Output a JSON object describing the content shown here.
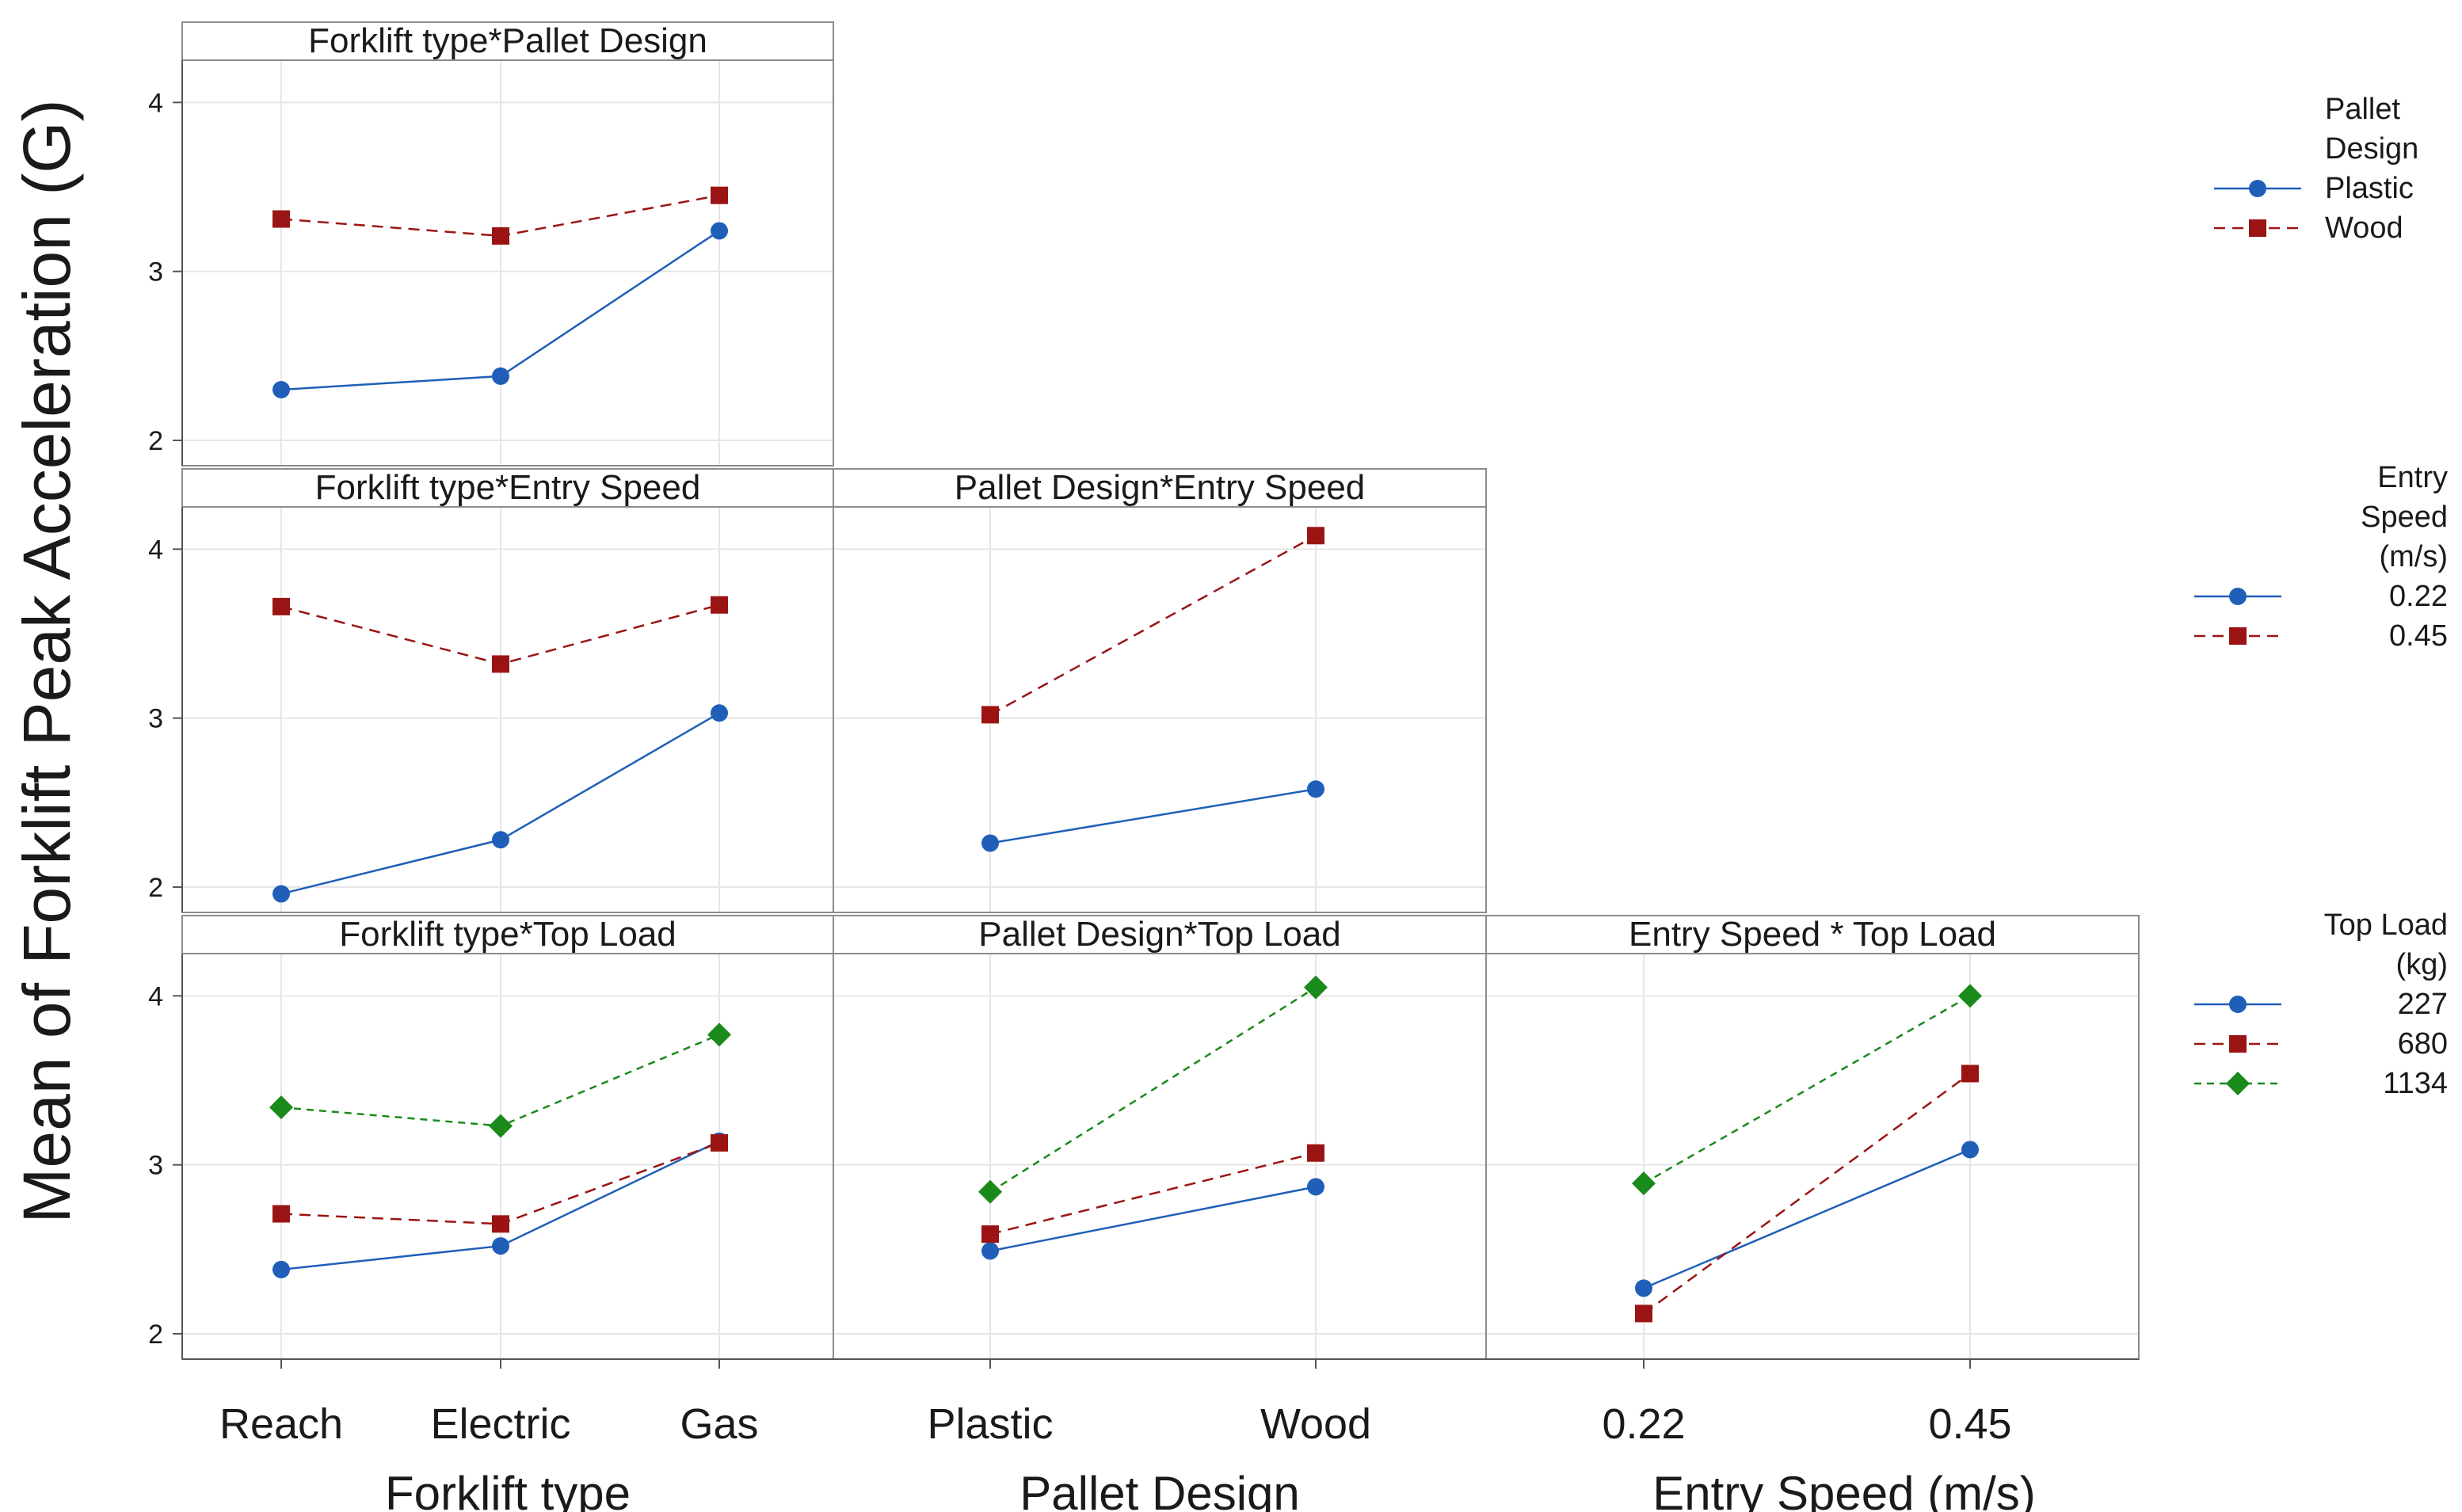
{
  "chart_data": {
    "type": "line",
    "title": "",
    "ylabel": "Mean of Forklift Peak Acceleration (G)",
    "ylim": [
      1.85,
      4.25
    ],
    "yticks": [
      2,
      3,
      4
    ],
    "factors": [
      {
        "key": "forklift",
        "label": "Forklift type",
        "levels": [
          "Reach",
          "Electric",
          "Gas"
        ]
      },
      {
        "key": "pallet",
        "label": "Pallet Design",
        "levels": [
          "Plastic",
          "Wood"
        ]
      },
      {
        "key": "speed",
        "label": "Entry Speed (m/s)",
        "levels": [
          "0.22",
          "0.45"
        ]
      }
    ],
    "legends": [
      {
        "title": [
          "Pallet",
          "Design"
        ],
        "align": "left",
        "entries": [
          "Plastic",
          "Wood"
        ]
      },
      {
        "title": [
          "Entry",
          "Speed",
          "(m/s)"
        ],
        "align": "right",
        "entries": [
          "0.22",
          "0.45"
        ]
      },
      {
        "title": [
          "Top Load",
          "(kg)"
        ],
        "align": "right",
        "entries": [
          "227",
          "680",
          "1134"
        ]
      }
    ],
    "series_styles": [
      {
        "color": "#1f5fb8",
        "marker": "circle",
        "dash": ""
      },
      {
        "color": "#9b1414",
        "marker": "square",
        "dash": "14,9"
      },
      {
        "color": "#1a8a1a",
        "marker": "diamond",
        "dash": "9,7"
      }
    ],
    "panels": [
      {
        "title": "Forklift type*Pallet Design",
        "row": 0,
        "col": 0,
        "series": [
          {
            "name": "Plastic",
            "values": [
              2.3,
              2.38,
              3.24
            ]
          },
          {
            "name": "Wood",
            "values": [
              3.31,
              3.21,
              3.45
            ]
          }
        ]
      },
      {
        "title": "Forklift type*Entry Speed",
        "row": 1,
        "col": 0,
        "series": [
          {
            "name": "0.22",
            "values": [
              1.96,
              2.28,
              3.03
            ]
          },
          {
            "name": "0.45",
            "values": [
              3.66,
              3.32,
              3.67
            ]
          }
        ]
      },
      {
        "title": "Pallet Design*Entry Speed",
        "row": 1,
        "col": 1,
        "series": [
          {
            "name": "0.22",
            "values": [
              2.26,
              2.58
            ]
          },
          {
            "name": "0.45",
            "values": [
              3.02,
              4.08
            ]
          }
        ]
      },
      {
        "title": "Forklift type*Top Load",
        "row": 2,
        "col": 0,
        "series": [
          {
            "name": "227",
            "values": [
              2.38,
              2.52,
              3.14
            ]
          },
          {
            "name": "680",
            "values": [
              2.71,
              2.65,
              3.13
            ]
          },
          {
            "name": "1134",
            "values": [
              3.34,
              3.23,
              3.77
            ]
          }
        ]
      },
      {
        "title": "Pallet Design*Top Load",
        "row": 2,
        "col": 1,
        "series": [
          {
            "name": "227",
            "values": [
              2.49,
              2.87
            ]
          },
          {
            "name": "680",
            "values": [
              2.59,
              3.07
            ]
          },
          {
            "name": "1134",
            "values": [
              2.84,
              4.05
            ]
          }
        ]
      },
      {
        "title": "Entry Speed * Top Load",
        "row": 2,
        "col": 2,
        "series": [
          {
            "name": "227",
            "values": [
              2.27,
              3.09
            ]
          },
          {
            "name": "680",
            "values": [
              2.12,
              3.54
            ]
          },
          {
            "name": "1134",
            "values": [
              2.89,
              4.0
            ]
          }
        ]
      }
    ]
  }
}
